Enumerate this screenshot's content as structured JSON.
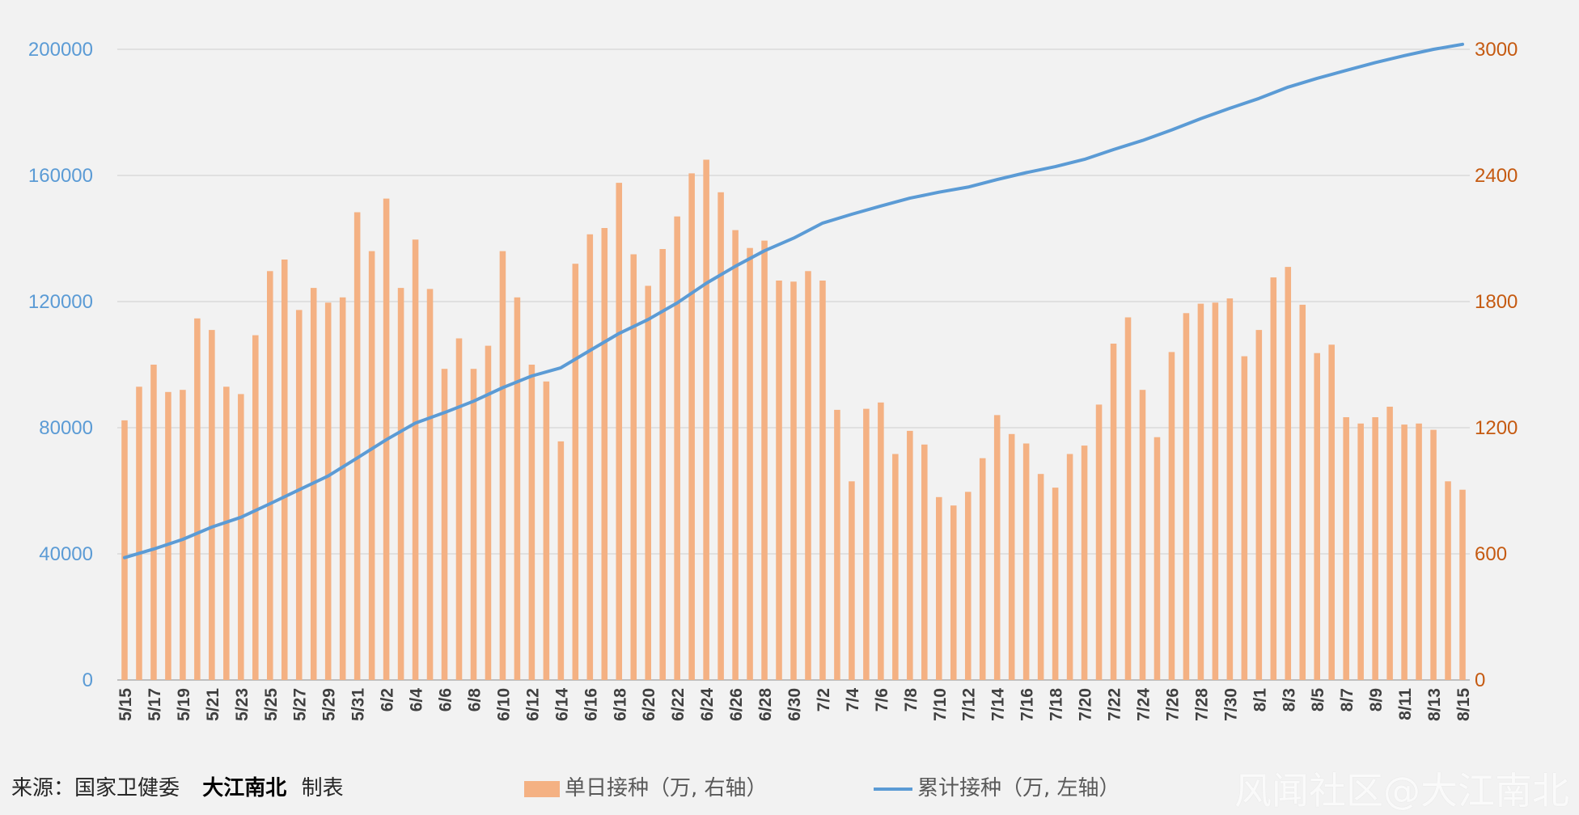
{
  "chart_data": {
    "type": "bar+line",
    "left_axis": {
      "ticks": [
        "0",
        "40000",
        "80000",
        "120000",
        "160000",
        "200000"
      ],
      "range": [
        0,
        200000
      ],
      "color": "#5b9bd5"
    },
    "right_axis": {
      "ticks": [
        "0",
        "600",
        "1200",
        "1800",
        "2400",
        "3000"
      ],
      "range": [
        0,
        3000
      ],
      "color": "#c55a11"
    },
    "x_tick_labels": [
      "5/15",
      "5/17",
      "5/19",
      "5/21",
      "5/23",
      "5/25",
      "5/27",
      "5/29",
      "5/31",
      "6/2",
      "6/4",
      "6/6",
      "6/8",
      "6/10",
      "6/12",
      "6/14",
      "6/16",
      "6/18",
      "6/20",
      "6/22",
      "6/24",
      "6/26",
      "6/28",
      "6/30",
      "7/2",
      "7/4",
      "7/6",
      "7/8",
      "7/10",
      "7/12",
      "7/14",
      "7/16",
      "7/18",
      "7/20",
      "7/22",
      "7/24",
      "7/26",
      "7/28",
      "7/30",
      "8/1",
      "8/3",
      "8/5",
      "8/7",
      "8/9",
      "8/11",
      "8/13",
      "8/15"
    ],
    "grid": true,
    "series": [
      {
        "name": "单日接种（万, 右轴）",
        "type": "bar",
        "axis": "right",
        "color": "#f4b183",
        "values": [
          1235,
          1395,
          1500,
          1370,
          1380,
          1720,
          1665,
          1395,
          1360,
          1640,
          1945,
          2000,
          1760,
          1865,
          1795,
          1820,
          2225,
          2040,
          2290,
          1865,
          2095,
          1860,
          1480,
          1625,
          1480,
          1590,
          2040,
          1820,
          1500,
          1420,
          1135,
          1980,
          2120,
          2150,
          2365,
          2025,
          1875,
          2050,
          2205,
          2410,
          2475,
          2320,
          2140,
          2055,
          2090,
          1900,
          1895,
          1945,
          1900,
          1285,
          945,
          1290,
          1320,
          1075,
          1185,
          1120,
          870,
          830,
          895,
          1055,
          1260,
          1170,
          1125,
          980,
          915,
          1075,
          1115,
          1310,
          1600,
          1725,
          1380,
          1155,
          1560,
          1745,
          1790,
          1795,
          1815,
          1540,
          1665,
          1915,
          1965,
          1785,
          1555,
          1595,
          1250,
          1220,
          1250,
          1300,
          1215,
          1220,
          1190,
          945,
          905
        ]
      },
      {
        "name": "累计接种（万, 左轴）",
        "type": "line",
        "axis": "left",
        "color": "#5b9bd5",
        "points": [
          {
            "x": "5/15",
            "y": 38800
          },
          {
            "x": "5/17",
            "y": 41500
          },
          {
            "x": "5/19",
            "y": 44600
          },
          {
            "x": "5/21",
            "y": 48500
          },
          {
            "x": "5/23",
            "y": 51600
          },
          {
            "x": "5/25",
            "y": 55900
          },
          {
            "x": "5/27",
            "y": 60300
          },
          {
            "x": "5/29",
            "y": 64700
          },
          {
            "x": "5/31",
            "y": 70400
          },
          {
            "x": "6/2",
            "y": 76200
          },
          {
            "x": "6/4",
            "y": 81500
          },
          {
            "x": "6/6",
            "y": 84800
          },
          {
            "x": "6/8",
            "y": 88400
          },
          {
            "x": "6/10",
            "y": 92700
          },
          {
            "x": "6/12",
            "y": 96400
          },
          {
            "x": "6/14",
            "y": 99000
          },
          {
            "x": "6/16",
            "y": 104500
          },
          {
            "x": "6/18",
            "y": 109900
          },
          {
            "x": "6/20",
            "y": 114300
          },
          {
            "x": "6/22",
            "y": 119600
          },
          {
            "x": "6/24",
            "y": 125800
          },
          {
            "x": "6/26",
            "y": 131200
          },
          {
            "x": "6/28",
            "y": 136100
          },
          {
            "x": "6/30",
            "y": 140100
          },
          {
            "x": "7/2",
            "y": 144900
          },
          {
            "x": "7/4",
            "y": 147700
          },
          {
            "x": "7/6",
            "y": 150300
          },
          {
            "x": "7/8",
            "y": 152800
          },
          {
            "x": "7/10",
            "y": 154700
          },
          {
            "x": "7/12",
            "y": 156300
          },
          {
            "x": "7/14",
            "y": 158700
          },
          {
            "x": "7/16",
            "y": 160900
          },
          {
            "x": "7/18",
            "y": 162800
          },
          {
            "x": "7/20",
            "y": 165100
          },
          {
            "x": "7/22",
            "y": 168200
          },
          {
            "x": "7/24",
            "y": 171100
          },
          {
            "x": "7/26",
            "y": 174400
          },
          {
            "x": "7/28",
            "y": 178000
          },
          {
            "x": "7/30",
            "y": 181300
          },
          {
            "x": "8/1",
            "y": 184400
          },
          {
            "x": "8/3",
            "y": 188000
          },
          {
            "x": "8/5",
            "y": 190800
          },
          {
            "x": "8/7",
            "y": 193300
          },
          {
            "x": "8/9",
            "y": 195800
          },
          {
            "x": "8/11",
            "y": 198000
          },
          {
            "x": "8/13",
            "y": 200000
          },
          {
            "x": "8/15",
            "y": 201600
          }
        ]
      }
    ]
  },
  "footer": {
    "source_prefix": "来源：国家卫健委",
    "author": "大江南北",
    "suffix": "制表",
    "legend_bar": "单日接种（万, 右轴）",
    "legend_line": "累计接种（万, 左轴）",
    "watermark": "风闻社区@大江南北"
  }
}
